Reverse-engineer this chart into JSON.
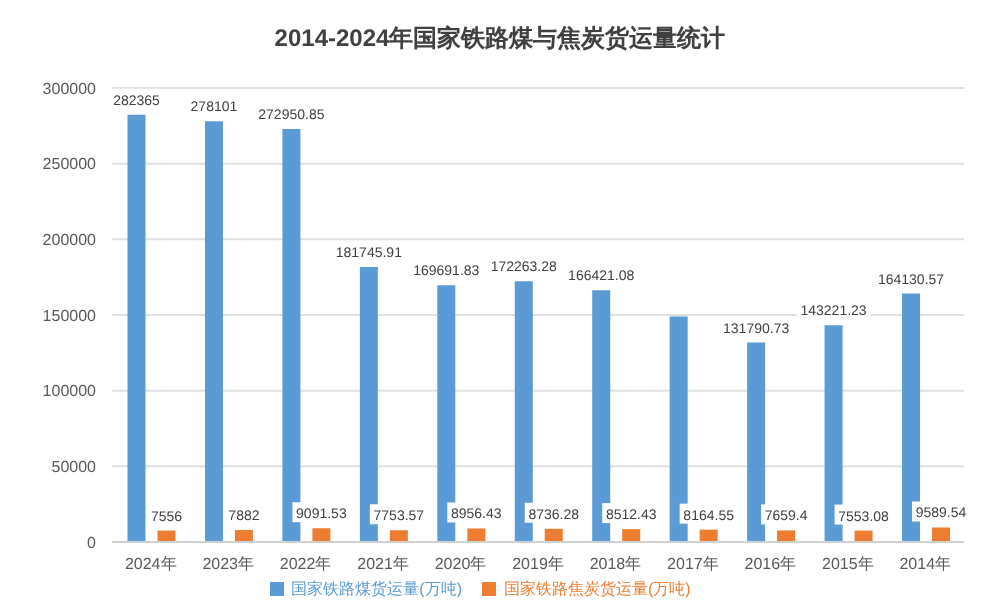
{
  "chart_data": {
    "type": "bar",
    "title": "2014-2024年国家铁路煤与焦炭货运量统计",
    "categories": [
      "2024年",
      "2023年",
      "2022年",
      "2021年",
      "2020年",
      "2019年",
      "2018年",
      "2017年",
      "2016年",
      "2015年",
      "2014年"
    ],
    "series": [
      {
        "name": "国家铁路煤货运量(万吨)",
        "color": "#5b9bd5",
        "values": [
          282365,
          278101,
          272950.85,
          181745.91,
          169691.83,
          172263.28,
          166421.08,
          149000,
          131790.73,
          143221.23,
          164130.57
        ],
        "value_labels": [
          "282365",
          "278101",
          "272950.85",
          "181745.91",
          "169691.83",
          "172263.28",
          "166421.08",
          null,
          "131790.73",
          "143221.23",
          "164130.57"
        ]
      },
      {
        "name": "国家铁路焦炭货运量(万吨)",
        "color": "#ed7d31",
        "values": [
          7556,
          7882,
          9091.53,
          7753.57,
          8956.43,
          8736.28,
          8512.43,
          8164.55,
          7659.4,
          7553.08,
          9589.54
        ],
        "value_labels": [
          "7556",
          "7882",
          "9091.53",
          "7753.57",
          "8956.43",
          "8736.28",
          "8512.43",
          "8164.55",
          "7659.4",
          "7553.08",
          "9589.54"
        ]
      }
    ],
    "ylim": [
      0,
      300000
    ],
    "yticks": [
      0,
      50000,
      100000,
      150000,
      200000,
      250000,
      300000
    ],
    "grid": "y",
    "legend": "bottom"
  }
}
